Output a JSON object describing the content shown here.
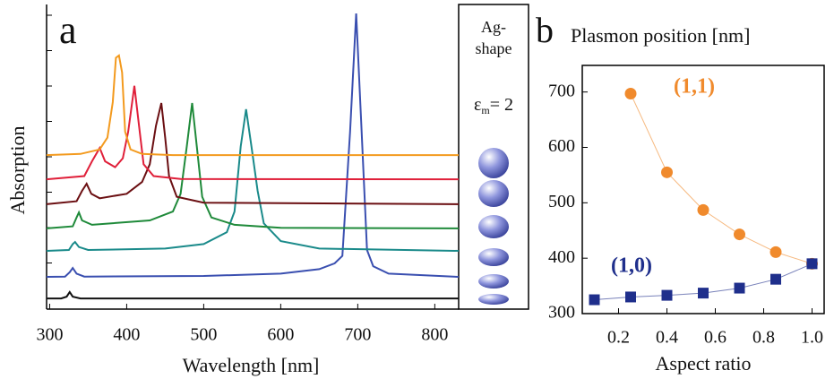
{
  "chart_data": [
    {
      "type": "line",
      "panel_label": "a",
      "xlabel": "Wavelength [nm]",
      "ylabel": "Absorption",
      "xlim": [
        296,
        831
      ],
      "ylim": [
        0,
        10
      ],
      "xticks": [
        300,
        400,
        500,
        600,
        700,
        800
      ],
      "inset_title": [
        "Ag-",
        "shape"
      ],
      "inset_symbol": "ε",
      "inset_subscript": "m",
      "inset_value": "= 2",
      "series": [
        {
          "color": "#111111",
          "x": [
            296,
            315,
            322,
            326,
            330,
            340,
            400,
            600,
            831
          ],
          "values": [
            0.36,
            0.36,
            0.42,
            0.58,
            0.42,
            0.36,
            0.36,
            0.36,
            0.36
          ]
        },
        {
          "color": "#3a4fb0",
          "x": [
            296,
            320,
            326,
            330,
            335,
            345,
            500,
            600,
            650,
            670,
            680,
            690,
            698,
            705,
            712,
            720,
            740,
            831
          ],
          "values": [
            1.09,
            1.1,
            1.25,
            1.39,
            1.2,
            1.1,
            1.12,
            1.2,
            1.35,
            1.55,
            1.8,
            6,
            10,
            6,
            2,
            1.45,
            1.2,
            1.09
          ]
        },
        {
          "color": "#1a8a8a",
          "x": [
            296,
            325,
            330,
            333,
            338,
            350,
            450,
            500,
            530,
            540,
            548,
            555,
            562,
            570,
            578,
            600,
            650,
            831
          ],
          "values": [
            1.97,
            2.0,
            2.2,
            2.27,
            2.1,
            2.0,
            2.05,
            2.2,
            2.6,
            3.3,
            5.5,
            6.76,
            5.5,
            4.0,
            2.9,
            2.3,
            2.05,
            1.97
          ]
        },
        {
          "color": "#1f8a3a",
          "x": [
            296,
            330,
            335,
            338,
            342,
            355,
            430,
            460,
            470,
            478,
            485,
            491,
            498,
            510,
            540,
            600,
            831
          ],
          "values": [
            2.73,
            2.8,
            3.1,
            3.27,
            3.0,
            2.85,
            3.0,
            3.3,
            3.9,
            5.5,
            6.97,
            5.5,
            3.8,
            3.1,
            2.85,
            2.75,
            2.73
          ]
        },
        {
          "color": "#6b0f12",
          "x": [
            296,
            335,
            342,
            348,
            354,
            365,
            400,
            420,
            430,
            438,
            445,
            450,
            455,
            465,
            500,
            831
          ],
          "values": [
            3.55,
            3.65,
            4.0,
            4.24,
            3.9,
            3.75,
            3.9,
            4.3,
            4.9,
            6.2,
            6.97,
            5.8,
            4.5,
            3.8,
            3.6,
            3.55
          ]
        },
        {
          "color": "#e0203a",
          "x": [
            296,
            345,
            355,
            365,
            372,
            385,
            395,
            402,
            410,
            416,
            422,
            435,
            470,
            831
          ],
          "values": [
            4.39,
            4.5,
            5.0,
            5.45,
            5.0,
            4.8,
            5.1,
            6.0,
            7.55,
            6.2,
            4.9,
            4.5,
            4.4,
            4.39
          ]
        },
        {
          "color": "#f39a1e",
          "x": [
            296,
            340,
            365,
            375,
            382,
            386,
            390,
            394,
            398,
            405,
            420,
            460,
            831
          ],
          "values": [
            5.21,
            5.25,
            5.4,
            5.8,
            7.0,
            8.5,
            8.58,
            8.0,
            6.0,
            5.4,
            5.25,
            5.21,
            5.21
          ]
        }
      ]
    },
    {
      "type": "scatter",
      "panel_label": "b",
      "title": "Plasmon position  [nm]",
      "xlabel": "Aspect ratio",
      "xlim": [
        0.05,
        1.05
      ],
      "ylim": [
        300,
        748
      ],
      "xticks": [
        0.2,
        0.4,
        0.6,
        0.8,
        {
          "value": 1.0,
          "label": "1.0"
        }
      ],
      "yticks": [
        300,
        400,
        500,
        600,
        700
      ],
      "series": [
        {
          "name": "(1,1)",
          "color": "#f08a2c",
          "marker": "circle",
          "x": [
            0.25,
            0.4,
            0.55,
            0.7,
            0.85,
            1.0
          ],
          "values": [
            697,
            555,
            487,
            443,
            411,
            390
          ]
        },
        {
          "name": "(1,0)",
          "color": "#1f2f8c",
          "marker": "square",
          "x": [
            0.1,
            0.25,
            0.4,
            0.55,
            0.7,
            0.85,
            1.0
          ],
          "values": [
            325,
            330,
            333,
            337,
            346,
            362,
            390
          ]
        }
      ]
    }
  ]
}
